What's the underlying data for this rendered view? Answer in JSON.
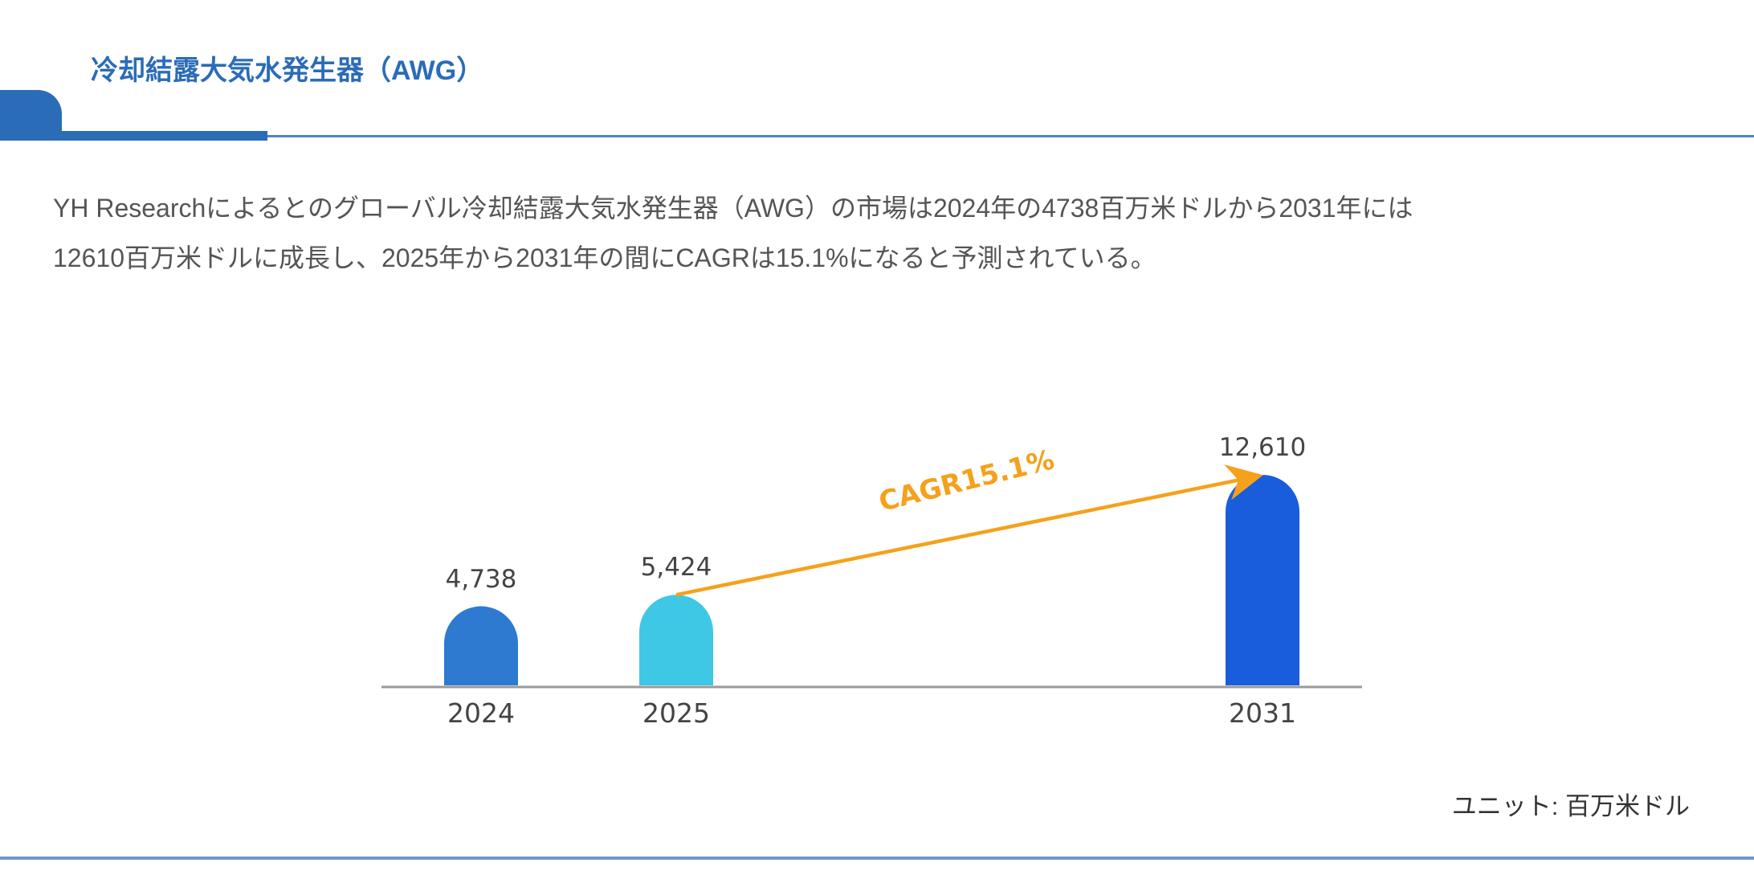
{
  "header": {
    "title": "冷却結露大気水発生器（AWG）",
    "accent_color": "#2b6cb8"
  },
  "summary": {
    "line1": "YH Researchによるとのグローバル冷却結露大気水発生器（AWG）の市場は2024年の4738百万米ドルから2031年には",
    "line2": "12610百万米ドルに成長し、2025年から2031年の間にCAGRは15.1%になると予測されている。"
  },
  "chart_data": {
    "type": "bar",
    "title": "冷却結露大気水発生器（AWG）",
    "categories": [
      "2024",
      "2025",
      "2031"
    ],
    "values": [
      4738,
      5424,
      12610
    ],
    "value_labels": [
      "4,738",
      "5,424",
      "12,610"
    ],
    "colors": [
      "#2e7ad1",
      "#3ec8e6",
      "#195ddc"
    ],
    "xlabel": "",
    "ylabel": "",
    "unit": "百万米ドル",
    "grid": false,
    "legend": "none",
    "annotation": {
      "text": "CAGR15.1%",
      "from": "2025",
      "to": "2031",
      "color": "#f5a11c"
    }
  },
  "footer": {
    "unit_label": "ユニット: 百万米ドル"
  }
}
